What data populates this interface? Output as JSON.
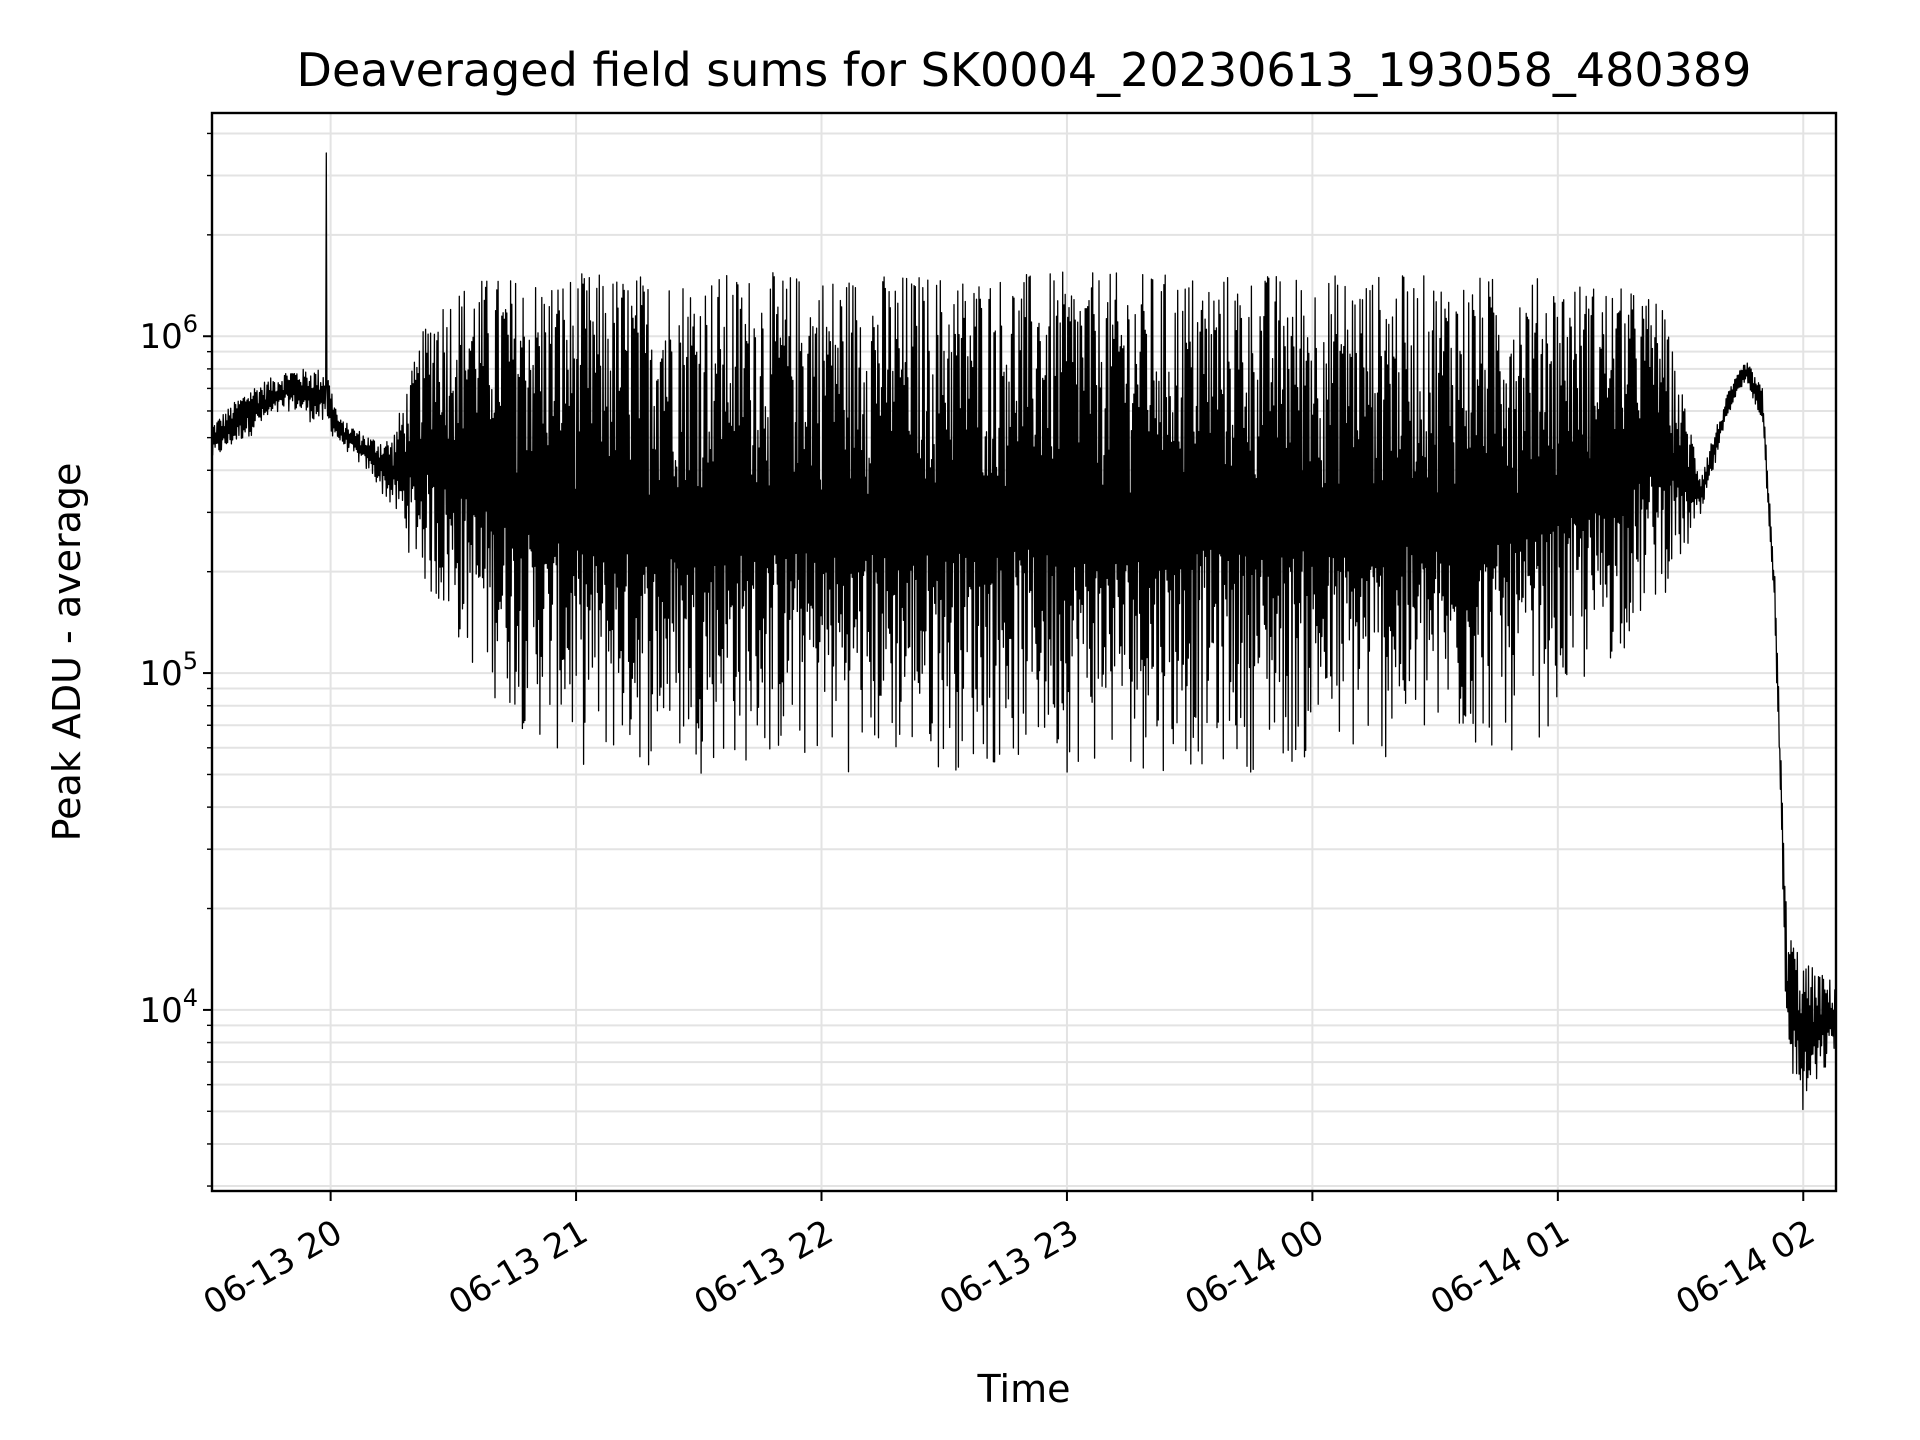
{
  "chart_data": {
    "type": "line",
    "title": "Deaveraged field sums for SK0004_20230613_193058_480389",
    "xlabel": "Time",
    "ylabel": "Peak ADU - average",
    "yscale": "log",
    "ylim": [
      2900,
      4600000
    ],
    "xlim": [
      "2023-06-13 19:31",
      "2023-06-14 02:08"
    ],
    "grid": true,
    "line_color": "#000000",
    "x_ticks": [
      {
        "time": "2023-06-13 20:00",
        "label": "06-13 20"
      },
      {
        "time": "2023-06-13 21:00",
        "label": "06-13 21"
      },
      {
        "time": "2023-06-13 22:00",
        "label": "06-13 22"
      },
      {
        "time": "2023-06-13 23:00",
        "label": "06-13 23"
      },
      {
        "time": "2023-06-14 00:00",
        "label": "06-14 00"
      },
      {
        "time": "2023-06-14 01:00",
        "label": "06-14 01"
      },
      {
        "time": "2023-06-14 02:00",
        "label": "06-14 02"
      }
    ],
    "y_ticks": [
      {
        "value": 10000,
        "base": "10",
        "exp": "4"
      },
      {
        "value": 100000,
        "base": "10",
        "exp": "5"
      },
      {
        "value": 1000000,
        "base": "10",
        "exp": "6"
      }
    ],
    "series": [
      {
        "upper_envelope": {
          "x": [
            "2023-06-13 19:31",
            "2023-06-13 19:40",
            "2023-06-13 19:50",
            "2023-06-13 19:59",
            "2023-06-13 20:02",
            "2023-06-13 20:10",
            "2023-06-13 20:15",
            "2023-06-13 20:25",
            "2023-06-13 20:35",
            "2023-06-13 21:00",
            "2023-06-13 22:00",
            "2023-06-13 23:00",
            "2023-06-14 00:00",
            "2023-06-14 01:00",
            "2023-06-14 01:15",
            "2023-06-14 01:25",
            "2023-06-14 01:35",
            "2023-06-14 01:42",
            "2023-06-14 01:46",
            "2023-06-14 01:50",
            "2023-06-14 01:53",
            "2023-06-14 01:56",
            "2023-06-14 02:00",
            "2023-06-14 02:08"
          ],
          "y": [
            550000,
            700000,
            800000,
            800000,
            570000,
            500000,
            500000,
            1300000,
            1500000,
            1550000,
            1550000,
            1550000,
            1550000,
            1500000,
            1400000,
            1300000,
            400000,
            700000,
            850000,
            700000,
            200000,
            18000,
            14000,
            12000
          ]
        },
        "lower_envelope": {
          "x": [
            "2023-06-13 19:31",
            "2023-06-13 19:40",
            "2023-06-13 19:50",
            "2023-06-13 19:59",
            "2023-06-13 20:02",
            "2023-06-13 20:10",
            "2023-06-13 20:15",
            "2023-06-13 20:25",
            "2023-06-13 20:35",
            "2023-06-13 20:50",
            "2023-06-13 21:00",
            "2023-06-13 22:00",
            "2023-06-13 23:00",
            "2023-06-14 00:00",
            "2023-06-14 00:50",
            "2023-06-14 01:10",
            "2023-06-14 01:20",
            "2023-06-14 01:30",
            "2023-06-14 01:35",
            "2023-06-14 01:42",
            "2023-06-14 01:46",
            "2023-06-14 01:50",
            "2023-06-14 01:53",
            "2023-06-14 01:56",
            "2023-06-14 02:00",
            "2023-06-14 02:08"
          ],
          "y": [
            420000,
            500000,
            600000,
            520000,
            480000,
            380000,
            300000,
            150000,
            95000,
            60000,
            50000,
            50000,
            50000,
            50000,
            55000,
            90000,
            130000,
            200000,
            280000,
            600000,
            720000,
            550000,
            150000,
            7000,
            4500,
            7500
          ]
        },
        "spike": {
          "x": "2023-06-13 19:59",
          "y": 3500000
        }
      }
    ]
  }
}
